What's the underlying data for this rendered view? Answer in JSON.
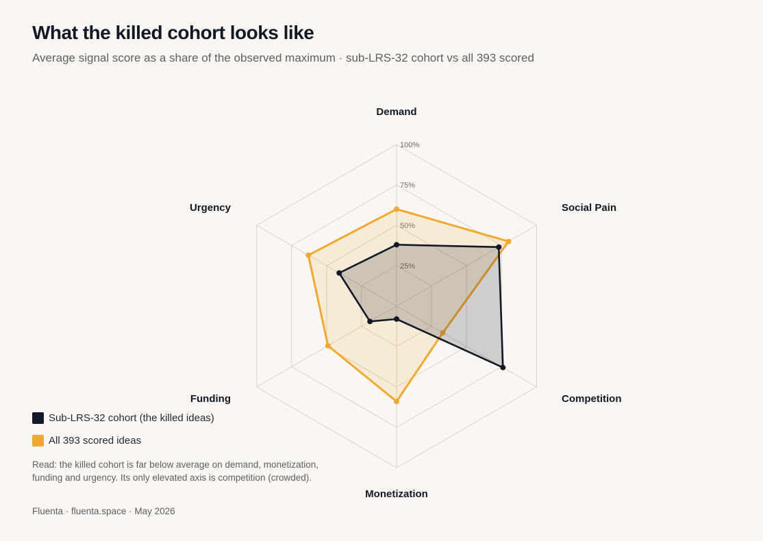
{
  "header": {
    "title": "What the killed cohort looks like",
    "subtitle": "Average signal score as a share of the observed maximum · sub-LRS-32 cohort vs all 393 scored"
  },
  "chart_data": {
    "type": "radar",
    "axes": [
      "Demand",
      "Social Pain",
      "Competition",
      "Monetization",
      "Funding",
      "Urgency"
    ],
    "rlim": [
      0,
      100
    ],
    "ticks": [
      25,
      50,
      75,
      100
    ],
    "tick_labels": [
      "25%",
      "50%",
      "75%",
      "100%"
    ],
    "series": [
      {
        "name": "Sub-LRS-32 cohort (the killed ideas)",
        "color": "#111827",
        "values": [
          38,
          73,
          76,
          8,
          19,
          41
        ]
      },
      {
        "name": "All 393 scored ideas",
        "color": "#f0a830",
        "values": [
          60,
          80,
          33,
          59,
          49,
          63
        ]
      }
    ]
  },
  "legend": {
    "items": [
      {
        "label": "Sub-LRS-32 cohort (the killed ideas)",
        "color": "#111827"
      },
      {
        "label": "All 393 scored ideas",
        "color": "#f0a830"
      }
    ]
  },
  "note": "Read: the killed cohort is far below average on demand, monetization, funding and urgency. Its only elevated axis is competition (crowded).",
  "footer": "Fluenta · fluenta.space · May 2026"
}
